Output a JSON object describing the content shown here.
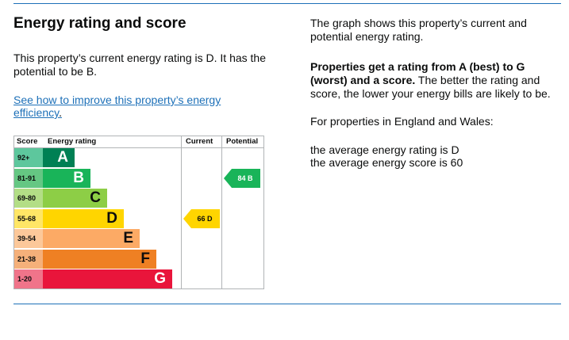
{
  "left": {
    "title": "Energy rating and score",
    "paragraph": "This property’s current energy rating is D. It has the potential to be B.",
    "link": "See how to improve this property’s energy efficiency",
    "link_punct": "."
  },
  "right": {
    "p1": "The graph shows this property’s current and potential energy rating.",
    "p2_bold": "Properties get a rating from A (best) to G (worst) and a score.",
    "p2_rest": " The better the rating and score, the lower your energy bills are likely to be.",
    "p3": "For properties in England and Wales:",
    "p4": "the average energy rating is D",
    "p5": "the average energy score is 60"
  },
  "chart": {
    "headers": {
      "score": "Score",
      "rating": "Energy rating",
      "current": "Current",
      "potential": "Potential"
    },
    "bands": [
      {
        "range": "92+",
        "letter": "A",
        "color": "#008054",
        "score_bg": "#5dc79d"
      },
      {
        "range": "81-91",
        "letter": "B",
        "color": "#19b459",
        "score_bg": "#65c783"
      },
      {
        "range": "69-80",
        "letter": "C",
        "color": "#8dce46",
        "score_bg": "#b3de86"
      },
      {
        "range": "55-68",
        "letter": "D",
        "color": "#ffd500",
        "score_bg": "#ffe666"
      },
      {
        "range": "39-54",
        "letter": "E",
        "color": "#fcaa65",
        "score_bg": "#fcc89a"
      },
      {
        "range": "21-38",
        "letter": "F",
        "color": "#ef8023",
        "score_bg": "#f5b07a"
      },
      {
        "range": "1-20",
        "letter": "G",
        "color": "#e9153b",
        "score_bg": "#f0748a"
      }
    ],
    "current": {
      "label": "66 D",
      "band": "D",
      "color": "#ffd500"
    },
    "potential": {
      "label": "84 B",
      "band": "B",
      "color": "#19b459"
    }
  }
}
